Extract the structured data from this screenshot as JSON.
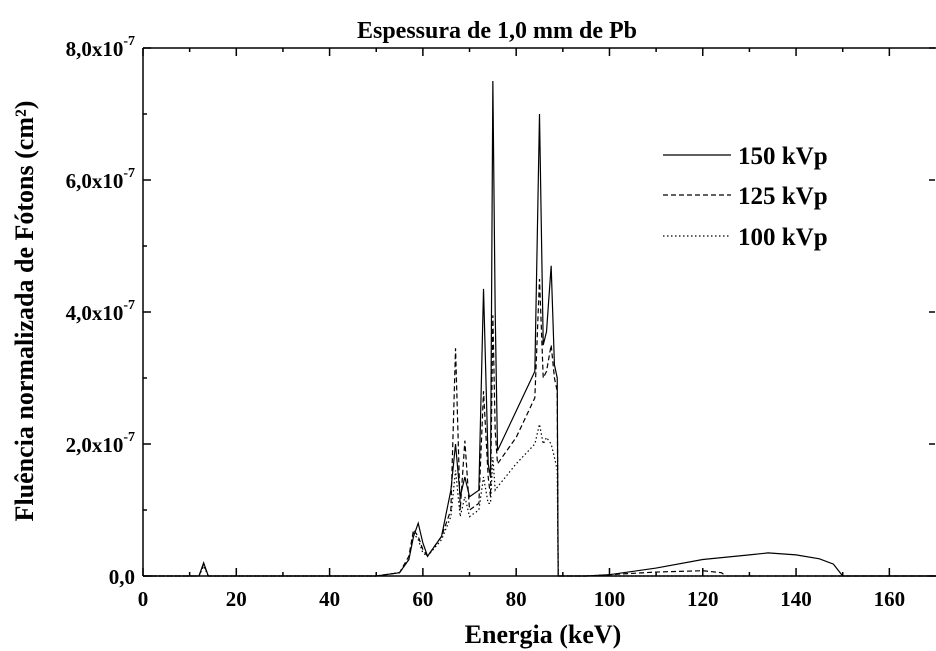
{
  "chart_data": {
    "type": "line",
    "title": "Espessura de 1,0 mm de Pb",
    "xlabel": "Energia (keV)",
    "ylabel": "Fluência normalizada de Fótons (cm²)",
    "xlim": [
      0,
      170
    ],
    "ylim": [
      0,
      8e-07
    ],
    "x_ticks": [
      0,
      20,
      40,
      60,
      80,
      100,
      120,
      140,
      160
    ],
    "x_tick_labels": [
      "0",
      "20",
      "40",
      "60",
      "80",
      "100",
      "120",
      "140",
      "160"
    ],
    "y_ticks": [
      0,
      2e-07,
      4e-07,
      6e-07,
      8e-07
    ],
    "y_tick_labels": [
      {
        "mant": "0,0",
        "exp": ""
      },
      {
        "mant": "2,0x10",
        "exp": "-7"
      },
      {
        "mant": "4,0x10",
        "exp": "-7"
      },
      {
        "mant": "6,0x10",
        "exp": "-7"
      },
      {
        "mant": "8,0x10",
        "exp": "-7"
      }
    ],
    "grid": false,
    "legend_position": "top-right",
    "series": [
      {
        "name": "150 kVp",
        "dash": "solid",
        "x": [
          0,
          12,
          13,
          14,
          50,
          55,
          57,
          58,
          59,
          60,
          61,
          64,
          66,
          67,
          68,
          69,
          70,
          72,
          73,
          74,
          74.5,
          75,
          75.5,
          76,
          80,
          84,
          85,
          85.8,
          86.5,
          87.5,
          88.2,
          88.8,
          89,
          95,
          100,
          110,
          120,
          130,
          134,
          140,
          145,
          148,
          150,
          170
        ],
        "y": [
          0,
          0,
          2e-08,
          0,
          0,
          5e-09,
          2.5e-08,
          6e-08,
          8e-08,
          5e-08,
          3e-08,
          6e-08,
          1.3e-07,
          2e-07,
          1.2e-07,
          1.5e-07,
          1.2e-07,
          1.3e-07,
          4.35e-07,
          1.7e-07,
          1.5e-07,
          7.5e-07,
          4e-07,
          1.9e-07,
          2.5e-07,
          3.1e-07,
          7e-07,
          3.5e-07,
          3.7e-07,
          4.7e-07,
          3.2e-07,
          3e-07,
          0,
          0,
          2e-09,
          1.2e-08,
          2.5e-08,
          3.2e-08,
          3.5e-08,
          3.2e-08,
          2.6e-08,
          1.8e-08,
          0,
          0
        ]
      },
      {
        "name": "125 kVp",
        "dash": "dashed",
        "x": [
          0,
          12,
          13,
          14,
          50,
          55,
          57,
          58,
          59,
          60,
          61,
          64,
          66,
          67,
          68,
          69,
          70,
          72,
          73,
          74,
          74.5,
          75,
          75.5,
          76,
          80,
          84,
          85,
          85.8,
          86.5,
          87.5,
          88.2,
          88.8,
          89,
          95,
          100,
          110,
          120,
          124,
          125,
          170
        ],
        "y": [
          0,
          0,
          1.8e-08,
          0,
          0,
          5e-09,
          3e-08,
          7e-08,
          6e-08,
          4e-08,
          3e-08,
          6e-08,
          1e-07,
          3.45e-07,
          1e-07,
          2.05e-07,
          1e-07,
          1.1e-07,
          2.8e-07,
          1.5e-07,
          1.2e-07,
          3.95e-07,
          2.2e-07,
          1.7e-07,
          2.1e-07,
          2.7e-07,
          4.5e-07,
          3e-07,
          3.1e-07,
          3.5e-07,
          3e-07,
          2.8e-07,
          0,
          0,
          2e-09,
          6e-09,
          8e-09,
          5e-09,
          0,
          0
        ]
      },
      {
        "name": "100 kVp",
        "dash": "dotted",
        "x": [
          0,
          12,
          13,
          14,
          50,
          55,
          57,
          58,
          59,
          60,
          61,
          64,
          66,
          67,
          68,
          69,
          70,
          72,
          73,
          74,
          74.5,
          75,
          75.5,
          76,
          80,
          84,
          85,
          85.8,
          86.5,
          87.5,
          88.2,
          88.8,
          89,
          95,
          99,
          100,
          170
        ],
        "y": [
          0,
          0,
          1.5e-08,
          0,
          0,
          5e-09,
          2.5e-08,
          6.5e-08,
          5.5e-08,
          3.5e-08,
          3e-08,
          5.5e-08,
          9e-08,
          1.6e-07,
          9e-08,
          1.2e-07,
          9e-08,
          1e-07,
          1.5e-07,
          1.1e-07,
          1.1e-07,
          1.8e-07,
          1.3e-07,
          1.35e-07,
          1.7e-07,
          2e-07,
          2.3e-07,
          2e-07,
          2.1e-07,
          2e-07,
          1.8e-07,
          1.6e-07,
          0,
          0,
          1e-09,
          0,
          0
        ]
      }
    ]
  }
}
